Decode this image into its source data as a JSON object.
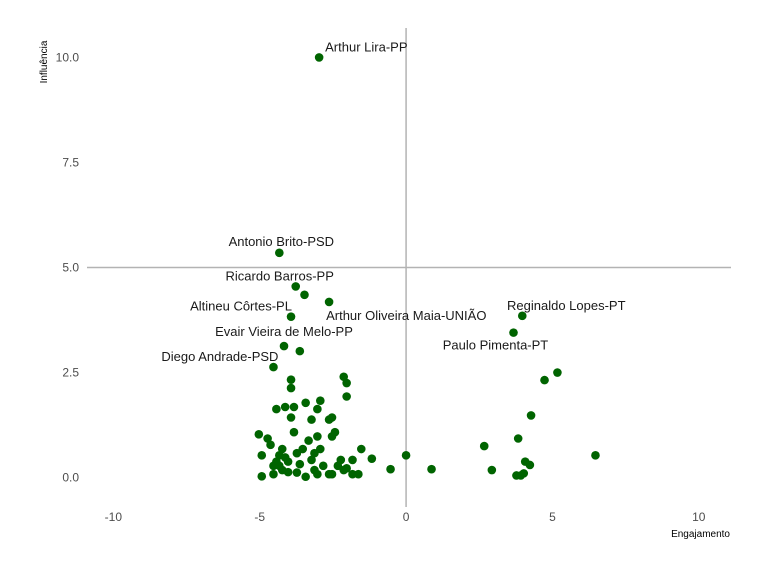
{
  "chart_data": {
    "type": "scatter",
    "title": "",
    "xlabel": "Engajamento",
    "ylabel": "Influência",
    "xlim": [
      -10.9,
      11.1
    ],
    "ylim": [
      -0.7,
      10.7
    ],
    "x_ticks": [
      -10,
      -5,
      0,
      5,
      10
    ],
    "x_tick_labels": [
      "-10",
      "-5",
      "0",
      "5",
      "10"
    ],
    "y_ticks": [
      0,
      2.5,
      5,
      7.5,
      10
    ],
    "y_tick_labels": [
      "0.0",
      "2.5",
      "5.0",
      "7.5",
      "10.0"
    ],
    "grid": false,
    "reference_lines": {
      "x": 0,
      "y": 5
    },
    "colors": {
      "point": "#006400",
      "reference_line": "#b3b3b3"
    },
    "points": [
      {
        "x": -2.97,
        "y": 10.0
      },
      {
        "x": -4.33,
        "y": 5.35
      },
      {
        "x": -3.77,
        "y": 4.55
      },
      {
        "x": -3.47,
        "y": 4.35
      },
      {
        "x": -2.63,
        "y": 4.18
      },
      {
        "x": -3.93,
        "y": 3.83
      },
      {
        "x": -4.17,
        "y": 3.13
      },
      {
        "x": -3.63,
        "y": 3.01
      },
      {
        "x": -4.53,
        "y": 2.63
      },
      {
        "x": 3.97,
        "y": 3.85
      },
      {
        "x": 3.67,
        "y": 3.45
      },
      {
        "x": 5.17,
        "y": 2.5
      },
      {
        "x": 4.73,
        "y": 2.32
      },
      {
        "x": 4.27,
        "y": 1.48
      },
      {
        "x": 3.83,
        "y": 0.93
      },
      {
        "x": 6.47,
        "y": 0.53
      },
      {
        "x": 2.67,
        "y": 0.75
      },
      {
        "x": 2.93,
        "y": 0.18
      },
      {
        "x": 4.07,
        "y": 0.38
      },
      {
        "x": 4.23,
        "y": 0.3
      },
      {
        "x": 3.77,
        "y": 0.05
      },
      {
        "x": 3.92,
        "y": 0.05
      },
      {
        "x": 4.02,
        "y": 0.1
      },
      {
        "x": 0.87,
        "y": 0.2
      },
      {
        "x": 0.0,
        "y": 0.53
      },
      {
        "x": -0.53,
        "y": 0.2
      },
      {
        "x": -1.17,
        "y": 0.45
      },
      {
        "x": -1.53,
        "y": 0.68
      },
      {
        "x": -1.63,
        "y": 0.08
      },
      {
        "x": -1.83,
        "y": 0.08
      },
      {
        "x": -1.83,
        "y": 0.42
      },
      {
        "x": -2.03,
        "y": 0.22
      },
      {
        "x": -2.03,
        "y": 1.93
      },
      {
        "x": -2.13,
        "y": 2.4
      },
      {
        "x": -2.03,
        "y": 2.25
      },
      {
        "x": -2.43,
        "y": 1.08
      },
      {
        "x": -2.53,
        "y": 1.43
      },
      {
        "x": -2.63,
        "y": 1.38
      },
      {
        "x": -2.23,
        "y": 0.42
      },
      {
        "x": -2.33,
        "y": 0.28
      },
      {
        "x": -2.53,
        "y": 0.98
      },
      {
        "x": -2.53,
        "y": 0.08
      },
      {
        "x": -2.63,
        "y": 0.08
      },
      {
        "x": -2.83,
        "y": 0.28
      },
      {
        "x": -2.93,
        "y": 1.83
      },
      {
        "x": -2.93,
        "y": 0.68
      },
      {
        "x": -3.03,
        "y": 1.63
      },
      {
        "x": -3.03,
        "y": 0.98
      },
      {
        "x": -3.13,
        "y": 0.58
      },
      {
        "x": -3.13,
        "y": 0.18
      },
      {
        "x": -3.03,
        "y": 0.08
      },
      {
        "x": -3.23,
        "y": 1.38
      },
      {
        "x": -3.23,
        "y": 0.42
      },
      {
        "x": -3.33,
        "y": 0.88
      },
      {
        "x": -3.43,
        "y": 1.78
      },
      {
        "x": -3.43,
        "y": 0.02
      },
      {
        "x": -3.53,
        "y": 0.68
      },
      {
        "x": -3.63,
        "y": 0.32
      },
      {
        "x": -3.73,
        "y": 0.58
      },
      {
        "x": -3.73,
        "y": 0.12
      },
      {
        "x": -3.83,
        "y": 1.68
      },
      {
        "x": -3.83,
        "y": 1.08
      },
      {
        "x": -3.93,
        "y": 2.33
      },
      {
        "x": -3.93,
        "y": 2.13
      },
      {
        "x": -3.93,
        "y": 1.43
      },
      {
        "x": -4.03,
        "y": 0.38
      },
      {
        "x": -4.03,
        "y": 0.13
      },
      {
        "x": -4.13,
        "y": 1.68
      },
      {
        "x": -4.13,
        "y": 0.48
      },
      {
        "x": -4.23,
        "y": 0.68
      },
      {
        "x": -4.23,
        "y": 0.18
      },
      {
        "x": -4.33,
        "y": 0.28
      },
      {
        "x": -4.43,
        "y": 1.63
      },
      {
        "x": -4.43,
        "y": 0.38
      },
      {
        "x": -4.53,
        "y": 0.08
      },
      {
        "x": -4.53,
        "y": 0.28
      },
      {
        "x": -4.63,
        "y": 0.78
      },
      {
        "x": -4.73,
        "y": 0.93
      },
      {
        "x": -4.93,
        "y": 0.03
      },
      {
        "x": -4.93,
        "y": 0.53
      },
      {
        "x": -5.03,
        "y": 1.03
      },
      {
        "x": -4.33,
        "y": 0.53
      },
      {
        "x": -2.13,
        "y": 0.18
      }
    ],
    "labels": [
      {
        "text": "Arthur Lira-PP",
        "x": -2.97,
        "y": 10.0,
        "anchor": "start",
        "dx": 6,
        "dy": -6
      },
      {
        "text": "Antonio Brito-PSD",
        "x": -4.33,
        "y": 5.35,
        "anchor": "middle",
        "dx": 2,
        "dy": -7
      },
      {
        "text": "Ricardo Barros-PP",
        "x": -3.77,
        "y": 4.55,
        "anchor": "middle",
        "dx": -16,
        "dy": -6
      },
      {
        "text": "Altineu Côrtes-PL",
        "x": -3.93,
        "y": 3.83,
        "anchor": "middle",
        "dx": -50,
        "dy": -6
      },
      {
        "text": "Arthur Oliveira Maia-UNIÃO",
        "x": -2.63,
        "y": 4.18,
        "anchor": "start",
        "dx": -3,
        "dy": 18
      },
      {
        "text": "Evair Vieira de Melo-PP",
        "x": -4.17,
        "y": 3.13,
        "anchor": "middle",
        "dx": 0,
        "dy": -10
      },
      {
        "text": "Diego Andrade-PSD",
        "x": -4.53,
        "y": 2.63,
        "anchor": "end",
        "dx": 5,
        "dy": -6
      },
      {
        "text": "Reginaldo Lopes-PT",
        "x": 3.97,
        "y": 3.85,
        "anchor": "middle",
        "dx": 44,
        "dy": -6
      },
      {
        "text": "Paulo Pimenta-PT",
        "x": 3.67,
        "y": 3.45,
        "anchor": "middle",
        "dx": -18,
        "dy": 17
      }
    ]
  }
}
